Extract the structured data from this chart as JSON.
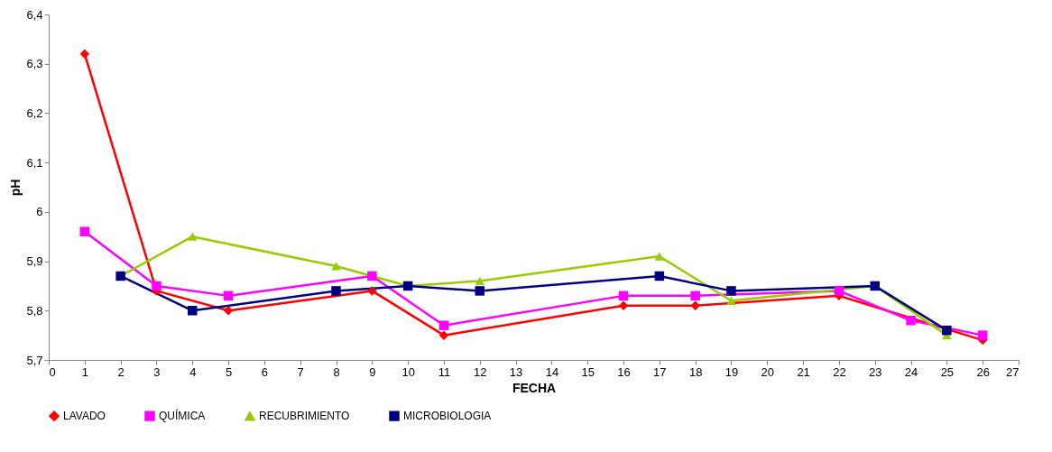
{
  "chart_data": {
    "type": "line",
    "xlabel": "FECHA",
    "ylabel": "pH",
    "xlim": [
      0,
      27
    ],
    "xticks": [
      0,
      1,
      2,
      3,
      4,
      5,
      6,
      7,
      8,
      9,
      10,
      11,
      12,
      13,
      14,
      15,
      16,
      17,
      18,
      19,
      20,
      21,
      22,
      23,
      24,
      25,
      26,
      27
    ],
    "ylim": [
      5.7,
      6.4
    ],
    "yticks": [
      {
        "value": 5.7,
        "label": "5,7"
      },
      {
        "value": 5.8,
        "label": "5,8"
      },
      {
        "value": 5.9,
        "label": "5,9"
      },
      {
        "value": 6,
        "label": "6"
      },
      {
        "value": 6.1,
        "label": "6,1"
      },
      {
        "value": 6.2,
        "label": "6,2"
      },
      {
        "value": 6.3,
        "label": "6,3"
      },
      {
        "value": 6.4,
        "label": "6,4"
      }
    ],
    "grid": false,
    "legend": "bottom",
    "line_style": "solid",
    "series": [
      {
        "name": "LAVADO",
        "color": "#ff0000",
        "marker": "diamond",
        "x": [
          1,
          3,
          5,
          9,
          11,
          16,
          18,
          22,
          26
        ],
        "values": [
          6.32,
          5.84,
          5.8,
          5.84,
          5.75,
          5.81,
          5.81,
          5.83,
          5.74
        ]
      },
      {
        "name": "QUÍMICA",
        "color": "#ff00ff",
        "marker": "square",
        "x": [
          1,
          3,
          5,
          9,
          11,
          16,
          18,
          22,
          24,
          26
        ],
        "values": [
          5.96,
          5.85,
          5.83,
          5.87,
          5.77,
          5.83,
          5.83,
          5.84,
          5.78,
          5.75
        ]
      },
      {
        "name": "RECUBRIMIENTO",
        "color": "#99cc00",
        "marker": "triangle",
        "x": [
          2,
          4,
          8,
          10,
          12,
          17,
          19,
          23,
          25
        ],
        "values": [
          5.87,
          5.95,
          5.89,
          5.85,
          5.86,
          5.91,
          5.82,
          5.85,
          5.75
        ]
      },
      {
        "name": "MICROBIOLOGIA",
        "color": "#000080",
        "marker": "square",
        "x": [
          2,
          4,
          8,
          10,
          12,
          17,
          19,
          23,
          25
        ],
        "values": [
          5.87,
          5.8,
          5.84,
          5.85,
          5.84,
          5.87,
          5.84,
          5.85,
          5.76
        ]
      }
    ]
  }
}
